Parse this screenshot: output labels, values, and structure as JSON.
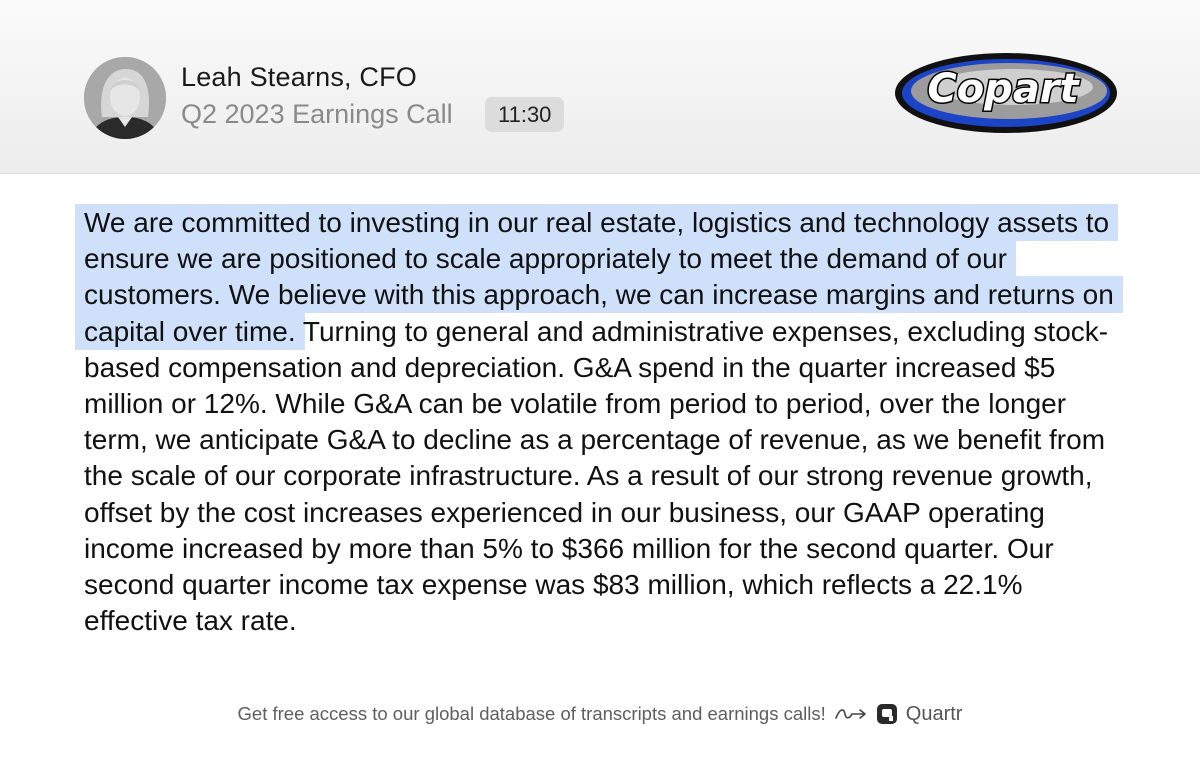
{
  "header": {
    "speaker": "Leah Stearns, CFO",
    "event": "Q2 2023 Earnings Call",
    "timestamp": "11:30",
    "logo_text": "Copart"
  },
  "transcript": {
    "highlighted": "We are committed to investing in our real estate, logistics and technology assets to ensure we are positioned to scale appropriately to meet the demand of our customers. We believe with this approach, we can increase margins and returns on capital over time.",
    "rest": " Turning to general and administrative expenses, excluding stock-based compensation and depreciation. G&A spend in the quarter increased $5 million or 12%. While G&A can be volatile from period to period, over the longer term, we anticipate G&A to decline as a percentage of revenue, as we benefit from the scale of our corporate infrastructure. As a result of our strong revenue growth, offset by the cost increases experienced in our business, our GAAP operating income increased by more than 5% to $366 million for the second quarter. Our second quarter income tax expense was $83 million, which reflects a 22.1% effective tax rate."
  },
  "footer": {
    "cta": "Get free access to our global database of transcripts and earnings calls!",
    "brand": "Quartr"
  },
  "colors": {
    "highlight": "#cfe0fb",
    "header_bg": "#efefef",
    "logo_blue": "#1c44c6"
  },
  "icons": [
    "speaker-avatar",
    "copart-logo",
    "squiggle-arrow-icon",
    "quartr-logo-icon"
  ]
}
